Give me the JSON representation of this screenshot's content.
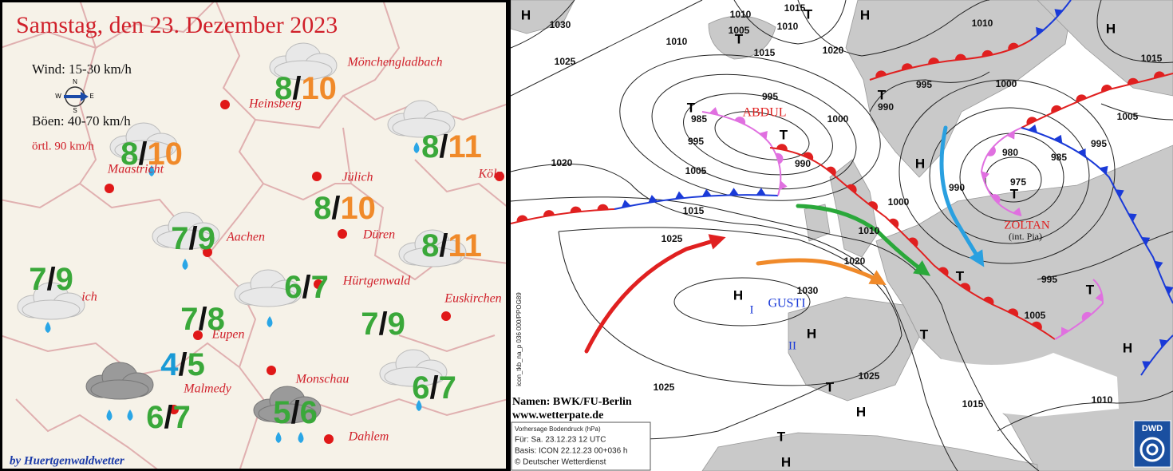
{
  "left_panel": {
    "title": "Samstag, den 23. Dezember 2023",
    "wind": "Wind: 15-30 km/h",
    "gusts": "Böen: 40-70 km/h",
    "local_gusts": "örtl. 90 km/h",
    "compass": [
      "N",
      "E",
      "S",
      "W"
    ],
    "credit": "by Huertgenwaldwetter",
    "separator": "/",
    "cities": [
      "Mönchengladbach",
      "Heinsberg",
      "Jülich",
      "Köln",
      "Maastricht",
      "Düren",
      "Aachen",
      "Hürtgenwald",
      "Euskirchen",
      "Eupen",
      "Monschau",
      "Malmedy",
      "Dahlem",
      "ich"
    ],
    "forecasts": [
      {
        "low": 8,
        "high": 10,
        "colors": [
          "#3aa83a",
          "#f08a2a"
        ]
      },
      {
        "low": 8,
        "high": 10,
        "colors": [
          "#3aa83a",
          "#f08a2a"
        ]
      },
      {
        "low": 8,
        "high": 11,
        "colors": [
          "#3aa83a",
          "#f08a2a"
        ]
      },
      {
        "low": 8,
        "high": 10,
        "colors": [
          "#3aa83a",
          "#f08a2a"
        ]
      },
      {
        "low": 8,
        "high": 11,
        "colors": [
          "#3aa83a",
          "#f08a2a"
        ]
      },
      {
        "low": 7,
        "high": 9,
        "colors": [
          "#3aa83a",
          "#3aa83a"
        ]
      },
      {
        "low": 7,
        "high": 9,
        "colors": [
          "#3aa83a",
          "#3aa83a"
        ]
      },
      {
        "low": 6,
        "high": 7,
        "colors": [
          "#3aa83a",
          "#3aa83a"
        ]
      },
      {
        "low": 7,
        "high": 8,
        "colors": [
          "#3aa83a",
          "#3aa83a"
        ]
      },
      {
        "low": 7,
        "high": 9,
        "colors": [
          "#3aa83a",
          "#3aa83a"
        ]
      },
      {
        "low": 4,
        "high": 5,
        "colors": [
          "#1a9ad6",
          "#3aa83a"
        ]
      },
      {
        "low": 6,
        "high": 7,
        "colors": [
          "#3aa83a",
          "#3aa83a"
        ]
      },
      {
        "low": 5,
        "high": 6,
        "colors": [
          "#3aa83a",
          "#3aa83a"
        ]
      },
      {
        "low": 6,
        "high": 7,
        "colors": [
          "#3aa83a",
          "#3aa83a"
        ]
      }
    ]
  },
  "right_panel": {
    "isobar_labels": [
      1030,
      1010,
      1015,
      1010,
      1005,
      1010,
      1010,
      1015,
      1020,
      1015,
      1025,
      995,
      1000,
      995,
      990,
      985,
      1000,
      1005,
      995,
      995,
      980,
      985,
      990,
      1020,
      1005,
      990,
      975,
      1000,
      1015,
      1010,
      1025,
      1020,
      995,
      1030,
      1005,
      1025,
      1025,
      1015,
      1010
    ],
    "pressure_centers": [
      "H",
      "T",
      "H",
      "H",
      "T",
      "T",
      "T",
      "T",
      "H",
      "T",
      "T",
      "H",
      "T",
      "H",
      "T",
      "H",
      "T",
      "H",
      "T",
      "H"
    ],
    "system_names": [
      "ABDUL",
      "ZOLTAN",
      "(int. Pia)",
      "GUSTI",
      "I",
      "II"
    ],
    "source": "Namen: BWK/FU-Berlin",
    "website": "www.wetterpate.de",
    "info": [
      "Vorhersage Bodendruck (hPa)",
      "Für:  Sa. 23.12.23  12 UTC",
      "Basis: ICON  22.12.23 00+036 h",
      "© Deutscher Wetterdienst"
    ],
    "logo": "DWD",
    "model_code": "icon_tkb_na_p  036 000/PPOG89"
  }
}
